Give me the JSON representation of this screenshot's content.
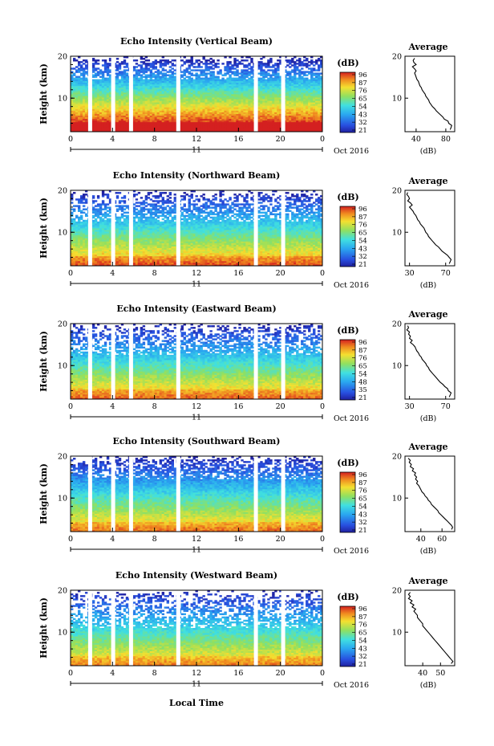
{
  "xlabel_bottom": "Local Time",
  "date_label": "Oct 2016",
  "day_label": "11",
  "chart_data": [
    {
      "type": "heatmap",
      "title": "Echo Intensity (Vertical Beam)",
      "ylabel": "Height (km)",
      "xticks": [
        "0",
        "4",
        "8",
        "12",
        "16",
        "20",
        "0"
      ],
      "yticks": [
        "20",
        "10"
      ],
      "ylim": [
        2,
        20
      ],
      "xlim": [
        0,
        24
      ],
      "colorbar_label": "(dB)",
      "colorbar_ticks": [
        "96",
        "87",
        "76",
        "65",
        "54",
        "43",
        "32",
        "21"
      ],
      "data_gaps_hours": [
        1.9,
        4.1,
        5.8,
        10.3,
        17.7,
        20.3
      ],
      "profile": {
        "title": "Average",
        "xlabel": "(dB)",
        "xticks": [
          "40",
          "80"
        ],
        "xlim": [
          25,
          92
        ],
        "height": [
          19.5,
          19,
          18.5,
          18,
          17.5,
          17,
          16.5,
          16,
          15.5,
          15,
          14.5,
          14,
          13.5,
          13,
          12.5,
          12,
          11.5,
          11,
          10.5,
          10,
          9.5,
          9,
          8.5,
          8,
          7.5,
          7,
          6.5,
          6,
          5.5,
          5,
          4.5,
          4,
          3.5,
          3,
          2.5
        ],
        "value": [
          38,
          36,
          37,
          40,
          35,
          38,
          40,
          38,
          39,
          40,
          41,
          43,
          44,
          45,
          47,
          48,
          50,
          52,
          53,
          55,
          57,
          58,
          60,
          62,
          65,
          67,
          70,
          73,
          76,
          78,
          83,
          84,
          88,
          87,
          86
        ]
      }
    },
    {
      "type": "heatmap",
      "title": "Echo Intensity (Northward Beam)",
      "ylabel": "Height (km)",
      "xticks": [
        "0",
        "4",
        "8",
        "12",
        "16",
        "20",
        "0"
      ],
      "yticks": [
        "20",
        "10"
      ],
      "ylim": [
        2,
        20
      ],
      "xlim": [
        0,
        24
      ],
      "colorbar_label": "(dB)",
      "colorbar_ticks": [
        "96",
        "87",
        "76",
        "65",
        "54",
        "43",
        "32",
        "21"
      ],
      "data_gaps_hours": [
        1.9,
        4.1,
        5.8,
        10.3,
        17.7,
        20.3
      ],
      "profile": {
        "title": "Average",
        "xlabel": "(dB)",
        "xticks": [
          "30",
          "70"
        ],
        "xlim": [
          25,
          80
        ],
        "height": [
          19.5,
          19,
          18.5,
          18,
          17.5,
          17,
          16.5,
          16,
          15.5,
          15,
          14.5,
          14,
          13.5,
          13,
          12.5,
          12,
          11.5,
          11,
          10.5,
          10,
          9.5,
          9,
          8.5,
          8,
          7.5,
          7,
          6.5,
          6,
          5.5,
          5,
          4.5,
          4,
          3.5,
          3,
          2.5
        ],
        "value": [
          28,
          27,
          29,
          30,
          28,
          31,
          33,
          30,
          32,
          34,
          35,
          37,
          38,
          39,
          41,
          42,
          44,
          46,
          47,
          48,
          50,
          51,
          53,
          55,
          57,
          59,
          62,
          64,
          66,
          69,
          72,
          74,
          76,
          75,
          74
        ]
      }
    },
    {
      "type": "heatmap",
      "title": "Echo Intensity (Eastward Beam)",
      "ylabel": "Height (km)",
      "xticks": [
        "0",
        "4",
        "8",
        "12",
        "16",
        "20",
        "0"
      ],
      "yticks": [
        "20",
        "10"
      ],
      "ylim": [
        2,
        20
      ],
      "xlim": [
        0,
        24
      ],
      "colorbar_label": "(dB)",
      "colorbar_ticks": [
        "96",
        "87",
        "76",
        "65",
        "54",
        "48",
        "35",
        "21"
      ],
      "data_gaps_hours": [
        1.9,
        4.1,
        5.8,
        10.3,
        17.7,
        20.3
      ],
      "profile": {
        "title": "Average",
        "xlabel": "(dB)",
        "xticks": [
          "30",
          "70"
        ],
        "xlim": [
          25,
          80
        ],
        "height": [
          19.5,
          19,
          18.5,
          18,
          17.5,
          17,
          16.5,
          16,
          15.5,
          15,
          14.5,
          14,
          13.5,
          13,
          12.5,
          12,
          11.5,
          11,
          10.5,
          10,
          9.5,
          9,
          8.5,
          8,
          7.5,
          7,
          6.5,
          6,
          5.5,
          5,
          4.5,
          4,
          3.5,
          3,
          2.5
        ],
        "value": [
          28,
          29,
          27,
          30,
          29,
          31,
          30,
          33,
          31,
          34,
          36,
          37,
          38,
          40,
          41,
          43,
          44,
          46,
          48,
          49,
          51,
          52,
          54,
          56,
          58,
          60,
          62,
          64,
          67,
          69,
          72,
          73,
          76,
          75,
          74
        ]
      }
    },
    {
      "type": "heatmap",
      "title": "Echo Intensity (Southward Beam)",
      "ylabel": "Height (km)",
      "xticks": [
        "0",
        "4",
        "8",
        "12",
        "16",
        "20",
        "0"
      ],
      "yticks": [
        "20",
        "10"
      ],
      "ylim": [
        2,
        20
      ],
      "xlim": [
        0,
        24
      ],
      "colorbar_label": "(dB)",
      "colorbar_ticks": [
        "96",
        "87",
        "76",
        "65",
        "54",
        "43",
        "32",
        "21"
      ],
      "data_gaps_hours": [
        1.9,
        4.1,
        5.8,
        10.3,
        17.7,
        20.3
      ],
      "profile": {
        "title": "Average",
        "xlabel": "(dB)",
        "xticks": [
          "40",
          "60"
        ],
        "xlim": [
          25,
          72
        ],
        "height": [
          19.5,
          19,
          18.5,
          18,
          17.5,
          17,
          16.5,
          16,
          15.5,
          15,
          14.5,
          14,
          13.5,
          13,
          12.5,
          12,
          11.5,
          11,
          10.5,
          10,
          9.5,
          9,
          8.5,
          8,
          7.5,
          7,
          6.5,
          6,
          5.5,
          5,
          4.5,
          4,
          3.5,
          3,
          2.5
        ],
        "value": [
          28,
          30,
          29,
          31,
          30,
          33,
          32,
          35,
          34,
          36,
          35,
          37,
          36,
          38,
          39,
          40,
          41,
          43,
          44,
          46,
          47,
          49,
          50,
          52,
          54,
          56,
          57,
          59,
          61,
          63,
          65,
          67,
          69,
          70,
          69
        ]
      }
    },
    {
      "type": "heatmap",
      "title": "Echo Intensity (Westward Beam)",
      "ylabel": "Height (km)",
      "xticks": [
        "0",
        "4",
        "8",
        "12",
        "16",
        "20",
        "0"
      ],
      "yticks": [
        "20",
        "10"
      ],
      "ylim": [
        2,
        20
      ],
      "xlim": [
        0,
        24
      ],
      "colorbar_label": "(dB)",
      "colorbar_ticks": [
        "96",
        "87",
        "76",
        "65",
        "54",
        "43",
        "32",
        "21"
      ],
      "data_gaps_hours": [
        1.9,
        4.1,
        5.8,
        10.3,
        17.7,
        20.3
      ],
      "profile": {
        "title": "Average",
        "xlabel": "(dB)",
        "xticks": [
          "40",
          "50"
        ],
        "xlim": [
          30,
          58
        ],
        "height": [
          19.5,
          19,
          18.5,
          18,
          17.5,
          17,
          16.5,
          16,
          15.5,
          15,
          14.5,
          14,
          13.5,
          13,
          12.5,
          12,
          11.5,
          11,
          10.5,
          10,
          9.5,
          9,
          8.5,
          8,
          7.5,
          7,
          6.5,
          6,
          5.5,
          5,
          4.5,
          4,
          3.5,
          3,
          2.5
        ],
        "value": [
          33,
          32,
          33,
          32,
          34,
          33,
          35,
          34,
          36,
          35,
          36,
          37,
          37,
          38,
          39,
          40,
          40,
          41,
          42,
          43,
          44,
          45,
          46,
          47,
          48,
          49,
          50,
          51,
          52,
          53,
          54,
          55,
          56,
          57,
          56
        ]
      }
    }
  ]
}
